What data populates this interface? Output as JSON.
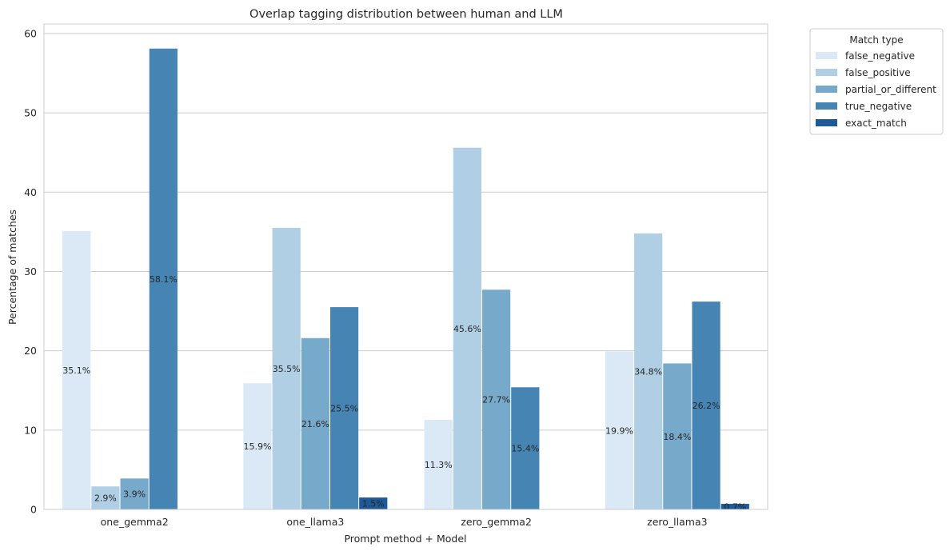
{
  "chart_data": {
    "type": "bar",
    "title": "Overlap tagging distribution between human and LLM",
    "xlabel": "Prompt method + Model",
    "ylabel": "Percentage of matches",
    "categories": [
      "one_gemma2",
      "one_llama3",
      "zero_gemma2",
      "zero_llama3"
    ],
    "ylim": [
      0,
      61.2
    ],
    "yticks": [
      0,
      10,
      20,
      30,
      40,
      50,
      60
    ],
    "grid": "horizontal",
    "legend": {
      "title": "Match type",
      "placement": "outside-top-right"
    },
    "series": [
      {
        "name": "false_negative",
        "color": "#dbe8f5",
        "values": [
          35.1,
          15.9,
          11.3,
          19.9
        ],
        "labels": [
          "35.1%",
          "15.9%",
          "11.3%",
          "19.9%"
        ]
      },
      {
        "name": "false_positive",
        "color": "#b1cfe4",
        "values": [
          2.9,
          35.5,
          45.6,
          34.8
        ],
        "labels": [
          "2.9%",
          "35.5%",
          "45.6%",
          "34.8%"
        ]
      },
      {
        "name": "partial_or_different",
        "color": "#77a9ca",
        "values": [
          3.9,
          21.6,
          27.7,
          18.4
        ],
        "labels": [
          "3.9%",
          "21.6%",
          "27.7%",
          "18.4%"
        ]
      },
      {
        "name": "true_negative",
        "color": "#4684b3",
        "values": [
          58.1,
          25.5,
          15.4,
          26.2
        ],
        "labels": [
          "58.1%",
          "25.5%",
          "15.4%",
          "26.2%"
        ]
      },
      {
        "name": "exact_match",
        "color": "#1d5a99",
        "values": [
          0,
          1.5,
          0,
          0.7
        ],
        "labels": [
          "",
          "1.5%",
          "",
          "0.7%"
        ]
      }
    ]
  }
}
